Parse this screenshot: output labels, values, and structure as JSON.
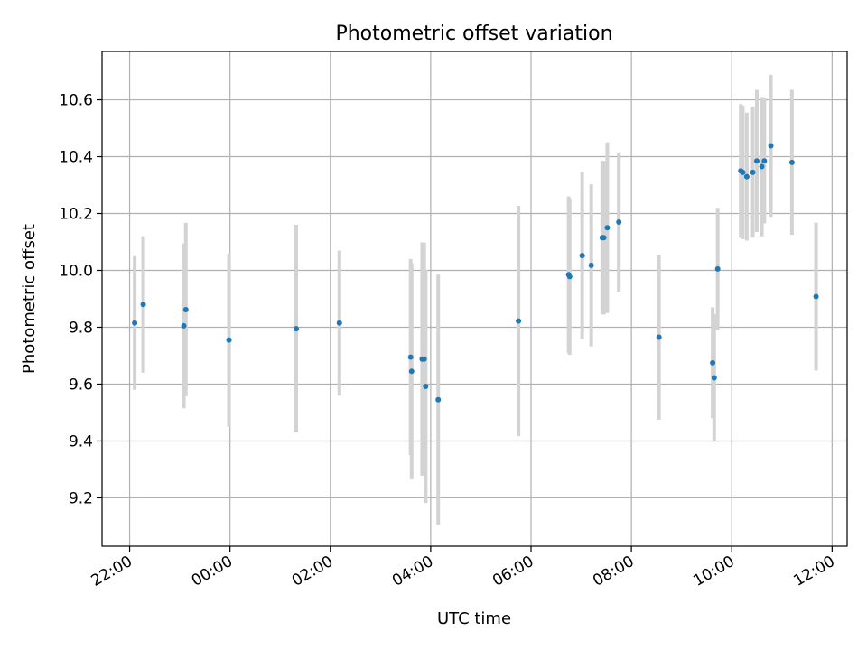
{
  "chart_data": {
    "type": "scatter",
    "title": "Photometric offset variation",
    "xlabel": "UTC time",
    "ylabel": "Photometric offset",
    "x_unit": "hours relative to 00:00 UTC",
    "xlim": [
      -2.55,
      12.3
    ],
    "ylim": [
      9.03,
      10.77
    ],
    "x_ticks": [
      {
        "value": -2,
        "label": "22:00"
      },
      {
        "value": 0,
        "label": "00:00"
      },
      {
        "value": 2,
        "label": "02:00"
      },
      {
        "value": 4,
        "label": "04:00"
      },
      {
        "value": 6,
        "label": "06:00"
      },
      {
        "value": 8,
        "label": "08:00"
      },
      {
        "value": 10,
        "label": "10:00"
      },
      {
        "value": 12,
        "label": "12:00"
      }
    ],
    "y_ticks": [
      {
        "value": 9.2,
        "label": "9.2"
      },
      {
        "value": 9.4,
        "label": "9.4"
      },
      {
        "value": 9.6,
        "label": "9.6"
      },
      {
        "value": 9.8,
        "label": "9.8"
      },
      {
        "value": 10.0,
        "label": "10.0"
      },
      {
        "value": 10.2,
        "label": "10.2"
      },
      {
        "value": 10.4,
        "label": "10.4"
      },
      {
        "value": 10.6,
        "label": "10.6"
      }
    ],
    "grid": true,
    "point_color": "#1f77b4",
    "errorbar_color": "#d3d3d3",
    "points": [
      {
        "x": -1.9,
        "y": 9.815,
        "err": 0.235
      },
      {
        "x": -1.73,
        "y": 9.88,
        "err": 0.24
      },
      {
        "x": -0.92,
        "y": 9.805,
        "err": 0.29
      },
      {
        "x": -0.88,
        "y": 9.862,
        "err": 0.305
      },
      {
        "x": -0.02,
        "y": 9.755,
        "err": 0.305
      },
      {
        "x": 1.32,
        "y": 9.795,
        "err": 0.365
      },
      {
        "x": 2.18,
        "y": 9.815,
        "err": 0.255
      },
      {
        "x": 3.6,
        "y": 9.695,
        "err": 0.345
      },
      {
        "x": 3.62,
        "y": 9.645,
        "err": 0.38
      },
      {
        "x": 3.83,
        "y": 9.688,
        "err": 0.41
      },
      {
        "x": 3.87,
        "y": 9.688,
        "err": 0.41
      },
      {
        "x": 3.9,
        "y": 9.592,
        "err": 0.41
      },
      {
        "x": 4.15,
        "y": 9.545,
        "err": 0.44
      },
      {
        "x": 5.75,
        "y": 9.822,
        "err": 0.405
      },
      {
        "x": 6.75,
        "y": 9.985,
        "err": 0.275
      },
      {
        "x": 6.77,
        "y": 9.978,
        "err": 0.275
      },
      {
        "x": 7.02,
        "y": 10.052,
        "err": 0.295
      },
      {
        "x": 7.2,
        "y": 10.018,
        "err": 0.285
      },
      {
        "x": 7.42,
        "y": 10.115,
        "err": 0.27
      },
      {
        "x": 7.45,
        "y": 10.115,
        "err": 0.27
      },
      {
        "x": 7.52,
        "y": 10.15,
        "err": 0.3
      },
      {
        "x": 7.75,
        "y": 10.17,
        "err": 0.245
      },
      {
        "x": 8.55,
        "y": 9.765,
        "err": 0.29
      },
      {
        "x": 9.62,
        "y": 9.675,
        "err": 0.195
      },
      {
        "x": 9.65,
        "y": 9.622,
        "err": 0.225
      },
      {
        "x": 9.72,
        "y": 10.005,
        "err": 0.215
      },
      {
        "x": 10.18,
        "y": 10.35,
        "err": 0.235
      },
      {
        "x": 10.22,
        "y": 10.345,
        "err": 0.235
      },
      {
        "x": 10.3,
        "y": 10.33,
        "err": 0.225
      },
      {
        "x": 10.42,
        "y": 10.345,
        "err": 0.23
      },
      {
        "x": 10.5,
        "y": 10.385,
        "err": 0.25
      },
      {
        "x": 10.6,
        "y": 10.365,
        "err": 0.245
      },
      {
        "x": 10.65,
        "y": 10.385,
        "err": 0.22
      },
      {
        "x": 10.78,
        "y": 10.438,
        "err": 0.25
      },
      {
        "x": 11.2,
        "y": 10.38,
        "err": 0.255
      },
      {
        "x": 11.68,
        "y": 9.908,
        "err": 0.26
      }
    ]
  }
}
